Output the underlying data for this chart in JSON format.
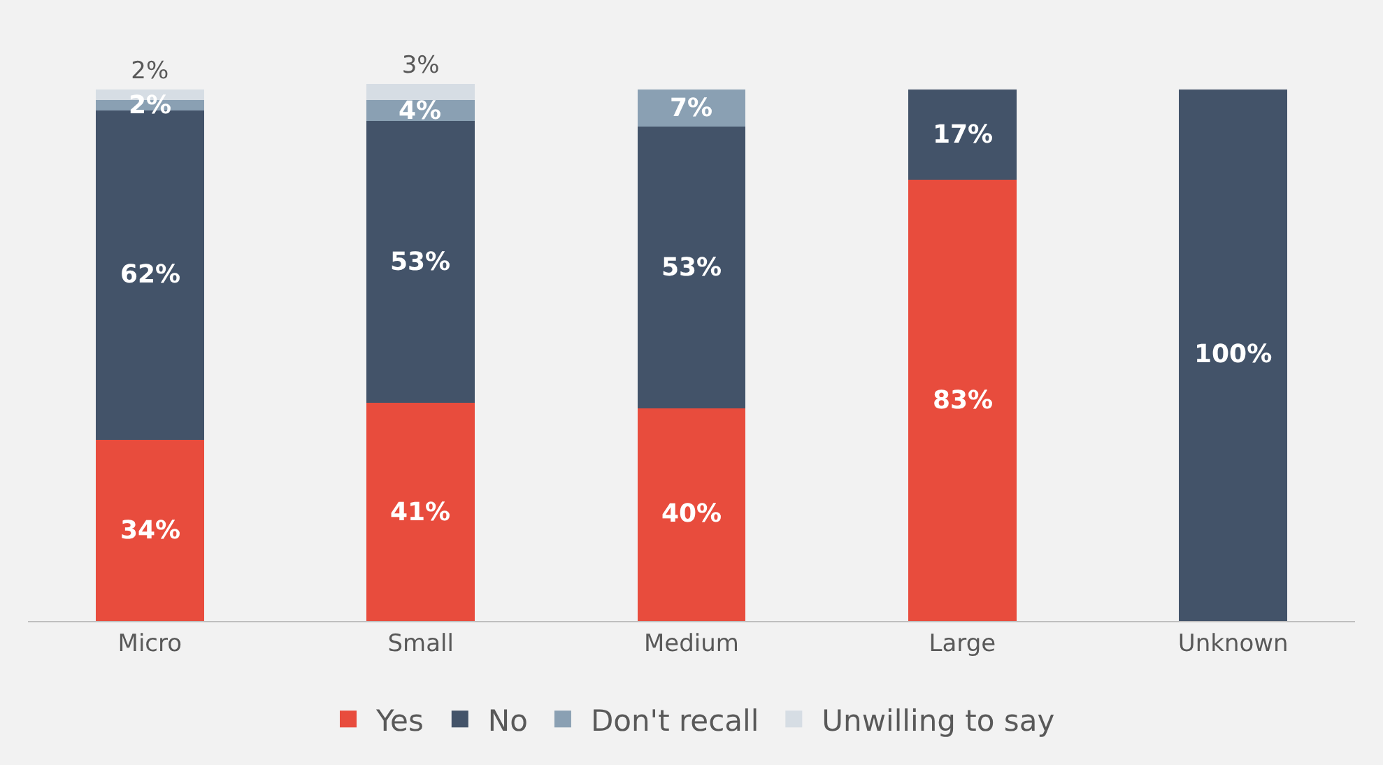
{
  "chart_data": {
    "type": "bar",
    "stacked": true,
    "categories": [
      "Micro",
      "Small",
      "Medium",
      "Large",
      "Unknown"
    ],
    "legend": "bottom",
    "grid": false,
    "series": [
      {
        "name": "Yes",
        "color": "#e84c3d",
        "values": [
          34,
          41,
          40,
          83,
          null
        ],
        "value_labels": [
          "34%",
          "41%",
          "40%",
          "83%",
          null
        ]
      },
      {
        "name": "No",
        "color": "#435369",
        "values": [
          62,
          53,
          53,
          17,
          100
        ],
        "value_labels": [
          "62%",
          "53%",
          "53%",
          "17%",
          "100%"
        ]
      },
      {
        "name": "Don't recall",
        "color": "#8aa0b3",
        "values": [
          2,
          4,
          7,
          null,
          null
        ],
        "value_labels": [
          "2%",
          "4%",
          "7%",
          null,
          null
        ]
      },
      {
        "name": "Unwilling to say",
        "color": "#d6dde4",
        "values": [
          2,
          3,
          null,
          null,
          null
        ],
        "value_labels": [
          "2%",
          "3%",
          null,
          null,
          null
        ]
      }
    ]
  }
}
